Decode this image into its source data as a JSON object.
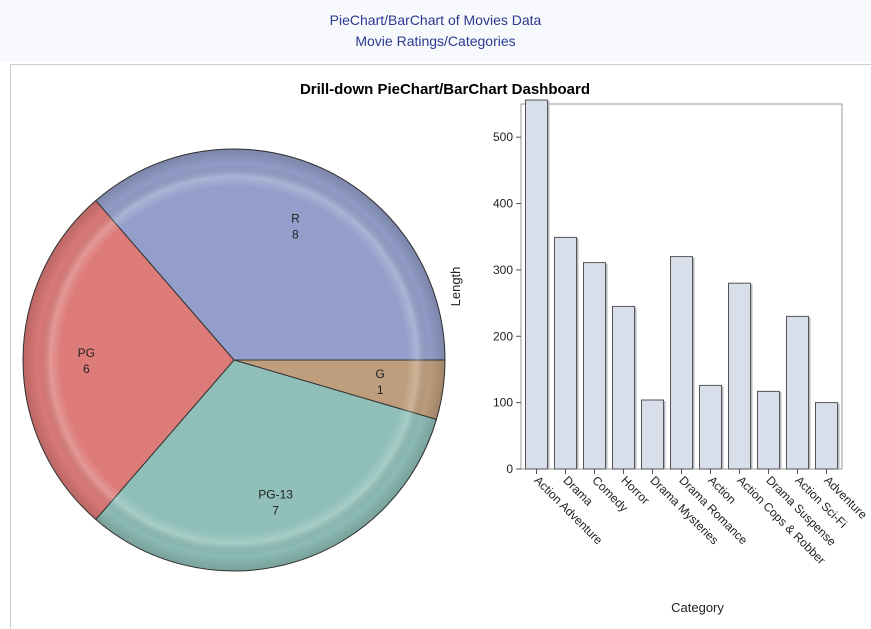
{
  "header": {
    "title": "PieChart/BarChart of Movies Data",
    "subtitle": "Movie Ratings/Categories"
  },
  "dashboard_title": "Drill-down PieChart/BarChart Dashboard",
  "colors": {
    "header_text": "#2b3990",
    "bar_fill": "#d8dfeb",
    "bar_stroke": "#555555",
    "pie": {
      "R": "#939fca",
      "PG": "#dd7b79",
      "PG-13": "#8fbfb8",
      "G": "#bf9e7d"
    }
  },
  "chart_data": [
    {
      "type": "pie",
      "title": "Drill-down PieChart/BarChart Dashboard",
      "slices": [
        {
          "label": "G",
          "value": 1
        },
        {
          "label": "PG-13",
          "value": 7
        },
        {
          "label": "PG",
          "value": 6
        },
        {
          "label": "R",
          "value": 8
        }
      ]
    },
    {
      "type": "bar",
      "xlabel": "Category",
      "ylabel": "Length",
      "ylim": [
        0,
        550
      ],
      "yticks": [
        0,
        100,
        200,
        300,
        400,
        500
      ],
      "grid": false,
      "categories": [
        "Action Adventure",
        "Drama",
        "Comedy",
        "Horror",
        "Drama Mysteries",
        "Drama Romance",
        "Action",
        "Action Cops & Robber",
        "Drama Suspense",
        "Action Sci-Fi",
        "Adventure"
      ],
      "values": [
        556,
        349,
        311,
        245,
        104,
        320,
        126,
        280,
        117,
        230,
        100
      ]
    }
  ]
}
